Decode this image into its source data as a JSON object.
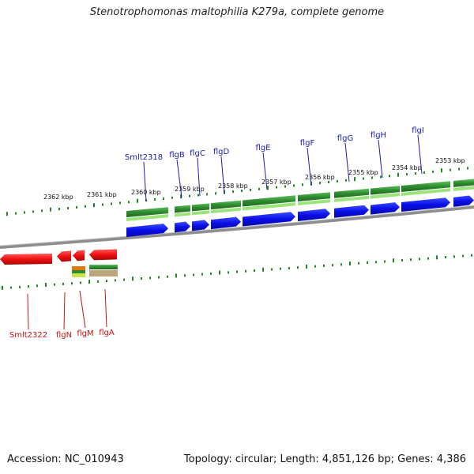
{
  "title": "Stenotrophomonas maltophilia K279a, complete genome",
  "footer": {
    "accession": "Accession: NC_010943",
    "summary": "Topology: circular; Length: 4,851,126 bp; Genes: 4,386"
  },
  "colors": {
    "forward_cds": "#0a0ee6",
    "reverse_cds": "#f01010",
    "forward_gene": "#2f8a2f",
    "reverse_gene": "#2f8a2f",
    "label_forward": "#1a1ab4",
    "label_reverse": "#c81414",
    "tick": "#1f8a1f",
    "backbone": "#8a8a8a"
  },
  "ticks": [
    {
      "label": "2362 kbp",
      "kbp": 2362
    },
    {
      "label": "2361 kbp",
      "kbp": 2361
    },
    {
      "label": "2360 kbp",
      "kbp": 2360
    },
    {
      "label": "2359 kbp",
      "kbp": 2359
    },
    {
      "label": "2358 kbp",
      "kbp": 2358
    },
    {
      "label": "2357 kbp",
      "kbp": 2357
    },
    {
      "label": "2356 kbp",
      "kbp": 2356
    },
    {
      "label": "2355 kbp",
      "kbp": 2355
    },
    {
      "label": "2354 kbp",
      "kbp": 2354
    },
    {
      "label": "2353 kbp",
      "kbp": 2353
    }
  ],
  "forward_genes": [
    {
      "name": "Smlt2318"
    },
    {
      "name": "flgB"
    },
    {
      "name": "flgC"
    },
    {
      "name": "flgD"
    },
    {
      "name": "flgE"
    },
    {
      "name": "flgF"
    },
    {
      "name": "flgG"
    },
    {
      "name": "flgH"
    },
    {
      "name": "flgI"
    }
  ],
  "reverse_genes": [
    {
      "name": "Smlt2322"
    },
    {
      "name": "flgN"
    },
    {
      "name": "flgM"
    },
    {
      "name": "flgA"
    }
  ]
}
